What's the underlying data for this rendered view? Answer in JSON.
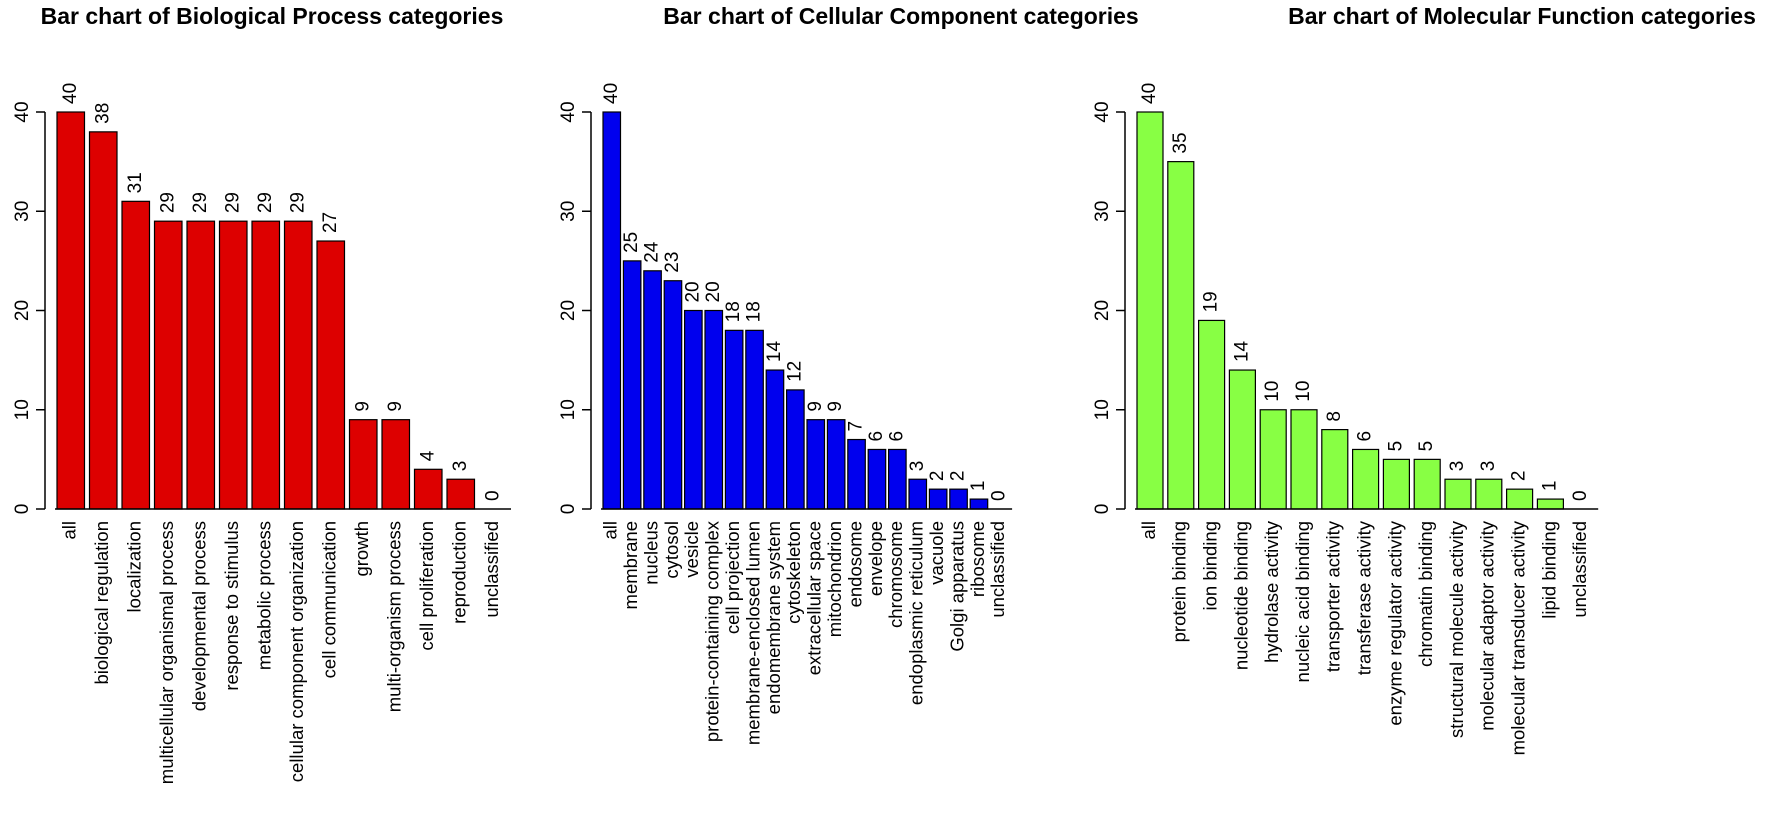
{
  "chart_data": [
    {
      "type": "bar",
      "title": "Bar chart of Biological Process categories",
      "xlabel": "",
      "ylabel": "",
      "ylim": [
        0,
        40
      ],
      "yticks": [
        0,
        10,
        20,
        30,
        40
      ],
      "color": "#dd0000",
      "categories": [
        "all",
        "biological regulation",
        "localization",
        "multicellular organismal process",
        "developmental process",
        "response to stimulus",
        "metabolic process",
        "cellular component organization",
        "cell communication",
        "growth",
        "multi-organism process",
        "cell proliferation",
        "reproduction",
        "unclassified"
      ],
      "values": [
        40,
        38,
        31,
        29,
        29,
        29,
        29,
        29,
        27,
        9,
        9,
        4,
        3,
        0
      ]
    },
    {
      "type": "bar",
      "title": "Bar chart of Cellular Component categories",
      "xlabel": "",
      "ylabel": "",
      "ylim": [
        0,
        40
      ],
      "yticks": [
        0,
        10,
        20,
        30,
        40
      ],
      "color": "#0000ee",
      "categories": [
        "all",
        "membrane",
        "nucleus",
        "cytosol",
        "vesicle",
        "protein-containing complex",
        "cell projection",
        "membrane-enclosed lumen",
        "endomembrane system",
        "cytoskeleton",
        "extracellular space",
        "mitochondrion",
        "endosome",
        "envelope",
        "chromosome",
        "endoplasmic reticulum",
        "vacuole",
        "Golgi apparatus",
        "ribosome",
        "unclassified"
      ],
      "values": [
        40,
        25,
        24,
        23,
        20,
        20,
        18,
        18,
        14,
        12,
        9,
        9,
        7,
        6,
        6,
        3,
        2,
        2,
        1,
        0
      ]
    },
    {
      "type": "bar",
      "title": "Bar chart of Molecular Function categories",
      "xlabel": "",
      "ylabel": "",
      "ylim": [
        0,
        40
      ],
      "yticks": [
        0,
        10,
        20,
        30,
        40
      ],
      "color": "#88ff44",
      "categories": [
        "all",
        "protein binding",
        "ion binding",
        "nucleotide binding",
        "hydrolase activity",
        "nucleic acid binding",
        "transporter activity",
        "transferase activity",
        "enzyme regulator activity",
        "chromatin binding",
        "structural molecule activity",
        "molecular adaptor activity",
        "molecular transducer activity",
        "lipid binding",
        "unclassified"
      ],
      "values": [
        40,
        35,
        19,
        14,
        10,
        10,
        8,
        6,
        5,
        5,
        3,
        3,
        2,
        1,
        0
      ]
    }
  ]
}
